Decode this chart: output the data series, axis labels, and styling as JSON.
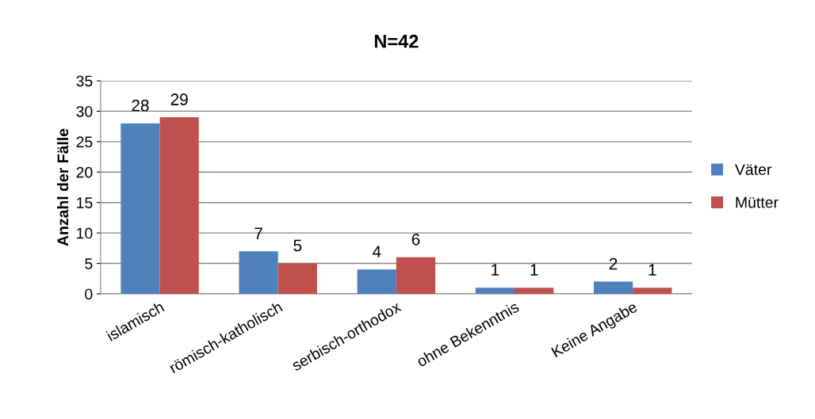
{
  "chart_data": {
    "type": "bar",
    "title": "N=42",
    "ylabel": "Anzahl der Fälle",
    "categories": [
      "islamisch",
      "römisch-katholisch",
      "serbisch-orthodox",
      "ohne Bekenntnis",
      "Keine Angabe"
    ],
    "series": [
      {
        "name": "Väter",
        "color": "#4f81bd",
        "values": [
          28,
          7,
          4,
          1,
          2
        ]
      },
      {
        "name": "Mütter",
        "color": "#c0504d",
        "values": [
          29,
          5,
          6,
          1,
          1
        ]
      }
    ],
    "ylim": [
      0,
      35
    ],
    "yticks": [
      0,
      5,
      10,
      15,
      20,
      25,
      30,
      35
    ],
    "grid": "y",
    "legend": "right",
    "data_labels": true
  }
}
